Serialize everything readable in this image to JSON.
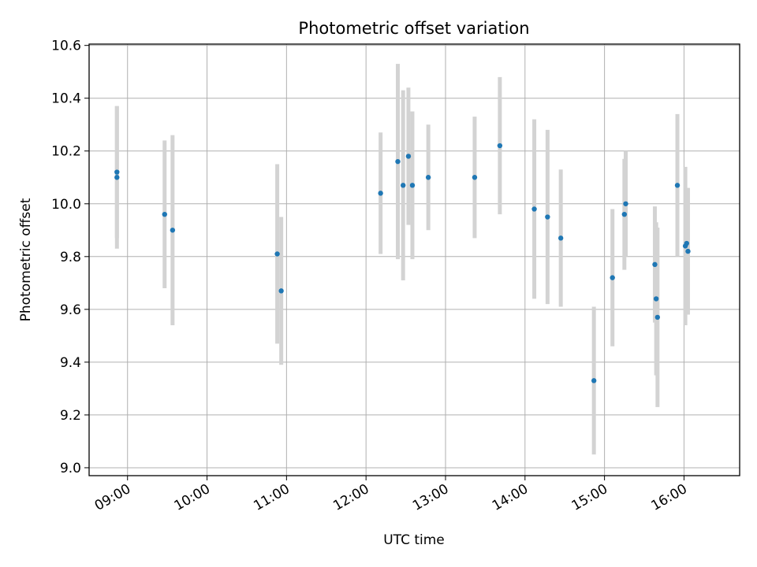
{
  "chart_data": {
    "type": "scatter",
    "title": "Photometric offset variation",
    "xlabel": "UTC time",
    "ylabel": "Photometric offset",
    "xlim": [
      "08:31",
      "16:42"
    ],
    "ylim": [
      8.97,
      10.605
    ],
    "x_ticks": [
      "09:00",
      "10:00",
      "11:00",
      "12:00",
      "13:00",
      "14:00",
      "15:00",
      "16:00"
    ],
    "y_ticks": [
      9.0,
      9.2,
      9.4,
      9.6,
      9.8,
      10.0,
      10.2,
      10.4,
      10.6
    ],
    "y_tick_labels": [
      "9.0",
      "9.2",
      "9.4",
      "9.6",
      "9.8",
      "10.0",
      "10.2",
      "10.4",
      "10.6"
    ],
    "grid": true,
    "colors": {
      "marker": "#1f77b4",
      "errorbar": "#d3d3d3",
      "grid": "#b0b0b0"
    },
    "points": [
      {
        "x": "08:52",
        "y": 10.1,
        "err": 0.27
      },
      {
        "x": "08:52",
        "y": 10.12,
        "err": 0.25
      },
      {
        "x": "09:28",
        "y": 9.96,
        "err": 0.28
      },
      {
        "x": "09:34",
        "y": 9.9,
        "err": 0.36
      },
      {
        "x": "10:53",
        "y": 9.81,
        "err": 0.34
      },
      {
        "x": "10:56",
        "y": 9.67,
        "err": 0.28
      },
      {
        "x": "12:11",
        "y": 10.04,
        "err": 0.23
      },
      {
        "x": "12:24",
        "y": 10.16,
        "err": 0.37
      },
      {
        "x": "12:28",
        "y": 10.07,
        "err": 0.36
      },
      {
        "x": "12:32",
        "y": 10.18,
        "err": 0.26
      },
      {
        "x": "12:35",
        "y": 10.07,
        "err": 0.28
      },
      {
        "x": "12:47",
        "y": 10.1,
        "err": 0.2
      },
      {
        "x": "13:22",
        "y": 10.1,
        "err": 0.23
      },
      {
        "x": "13:41",
        "y": 10.22,
        "err": 0.26
      },
      {
        "x": "14:07",
        "y": 9.98,
        "err": 0.34
      },
      {
        "x": "14:17",
        "y": 9.95,
        "err": 0.33
      },
      {
        "x": "14:27",
        "y": 9.87,
        "err": 0.26
      },
      {
        "x": "14:52",
        "y": 9.33,
        "err": 0.28
      },
      {
        "x": "15:06",
        "y": 9.72,
        "err": 0.26
      },
      {
        "x": "15:15",
        "y": 9.96,
        "err": 0.21
      },
      {
        "x": "15:16",
        "y": 10.0,
        "err": 0.2
      },
      {
        "x": "15:38",
        "y": 9.77,
        "err": 0.22
      },
      {
        "x": "15:39",
        "y": 9.64,
        "err": 0.29
      },
      {
        "x": "15:40",
        "y": 9.57,
        "err": 0.34
      },
      {
        "x": "15:55",
        "y": 10.07,
        "err": 0.27
      },
      {
        "x": "16:01",
        "y": 9.84,
        "err": 0.3
      },
      {
        "x": "16:02",
        "y": 9.85,
        "err": 0.21
      },
      {
        "x": "16:03",
        "y": 9.82,
        "err": 0.24
      }
    ]
  }
}
